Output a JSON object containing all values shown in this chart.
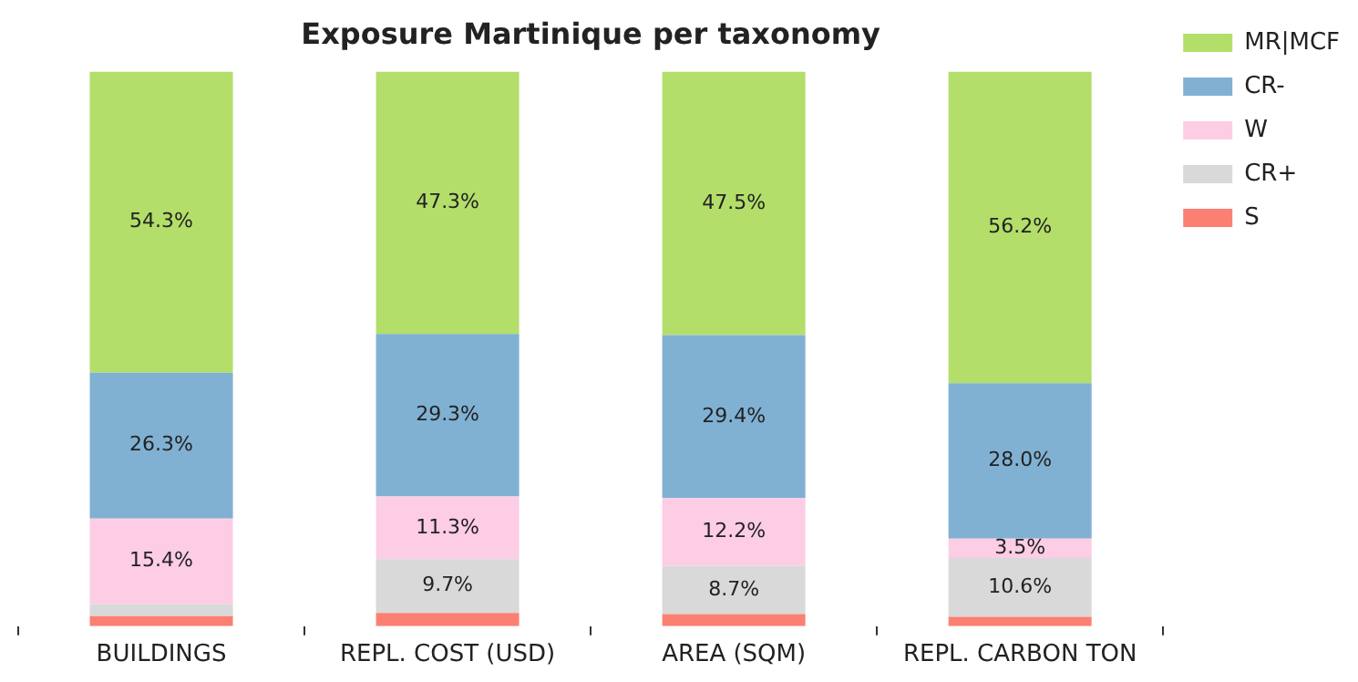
{
  "chart_data": {
    "type": "bar",
    "title": "Exposure Martinique per taxonomy",
    "categories": [
      "BUILDINGS",
      "REPL. COST (USD)",
      "AREA (SQM)",
      "REPL. CARBON TON"
    ],
    "stacked": true,
    "ylim": [
      0,
      100
    ],
    "tick_labels": "x",
    "grid": false,
    "legend": "top right",
    "series": [
      {
        "name": "S",
        "color": "#fb8072",
        "values": [
          1.8,
          2.4,
          2.2,
          1.7
        ],
        "value_labels": [
          null,
          null,
          null,
          null
        ]
      },
      {
        "name": "CR+",
        "color": "#d9d9d9",
        "values": [
          2.2,
          9.7,
          8.7,
          10.6
        ],
        "value_labels": [
          null,
          "9.7%",
          "8.7%",
          "10.6%"
        ]
      },
      {
        "name": "W",
        "color": "#fccde5",
        "values": [
          15.4,
          11.3,
          12.2,
          3.5
        ],
        "value_labels": [
          "15.4%",
          "11.3%",
          "12.2%",
          "3.5%"
        ]
      },
      {
        "name": "CR-",
        "color": "#80b1d3",
        "values": [
          26.3,
          29.3,
          29.4,
          28.0
        ],
        "value_labels": [
          "26.3%",
          "29.3%",
          "29.4%",
          "28.0%"
        ]
      },
      {
        "name": "MR|MCF",
        "color": "#b3de69",
        "values": [
          54.3,
          47.3,
          47.5,
          56.2
        ],
        "value_labels": [
          "54.3%",
          "47.3%",
          "47.5%",
          "56.2%"
        ]
      }
    ]
  }
}
